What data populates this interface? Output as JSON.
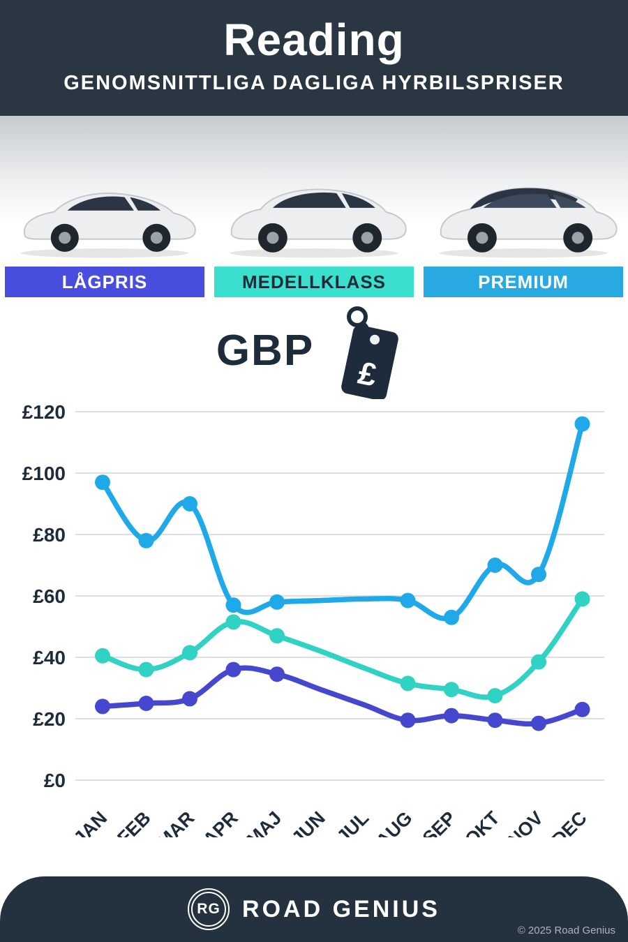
{
  "header": {
    "title": "Reading",
    "subtitle": "GENOMSNITTLIGA DAGLIGA HYRBILSPRISER"
  },
  "categories": {
    "items": [
      {
        "label": "LÅGPRIS",
        "bg": "#4a4edf",
        "fg": "#ffffff"
      },
      {
        "label": "MEDELLKLASS",
        "bg": "#3bdfcd",
        "fg": "#1d2b3a"
      },
      {
        "label": "PREMIUM",
        "bg": "#29a9e2",
        "fg": "#ffffff"
      }
    ]
  },
  "currency": {
    "label": "GBP",
    "symbol": "£"
  },
  "chart_data": {
    "type": "line",
    "x": [
      "JAN",
      "FEB",
      "MAR",
      "APR",
      "MAJ",
      "JUN",
      "JUL",
      "AUG",
      "SEP",
      "OKT",
      "NOV",
      "DEC"
    ],
    "ylim": [
      0,
      120
    ],
    "ytick_step": 20,
    "ylabel_ticks": [
      "£0",
      "£20",
      "£40",
      "£60",
      "£80",
      "£100",
      "£120"
    ],
    "grid": true,
    "legend": "none",
    "series": [
      {
        "id": "premium",
        "name": "PREMIUM",
        "color": "#1fa9e8",
        "values": [
          97,
          78,
          90,
          57,
          58,
          58.5,
          59,
          58.5,
          53,
          70,
          67,
          116
        ],
        "marker_indices": [
          0,
          1,
          2,
          3,
          4,
          7,
          8,
          9,
          10,
          11
        ]
      },
      {
        "id": "medellklass",
        "name": "MEDELLKLASS",
        "color": "#30d2c3",
        "values": [
          40.5,
          36,
          41.5,
          51.5,
          47,
          42,
          36.5,
          31.5,
          29.5,
          27.5,
          38.5,
          59
        ],
        "marker_indices": [
          0,
          1,
          2,
          3,
          4,
          7,
          8,
          9,
          10,
          11
        ]
      },
      {
        "id": "lagpris",
        "name": "LÅGPRIS",
        "color": "#4547ce",
        "values": [
          24,
          25,
          26.5,
          36,
          34.5,
          29.5,
          24.5,
          19.5,
          21,
          19.5,
          18.5,
          23
        ],
        "marker_indices": [
          0,
          1,
          2,
          3,
          4,
          7,
          8,
          9,
          10,
          11
        ]
      }
    ]
  },
  "footer": {
    "logo_initials": "RG",
    "brand": "ROAD GENIUS",
    "copyright": "© 2025 Road Genius"
  }
}
